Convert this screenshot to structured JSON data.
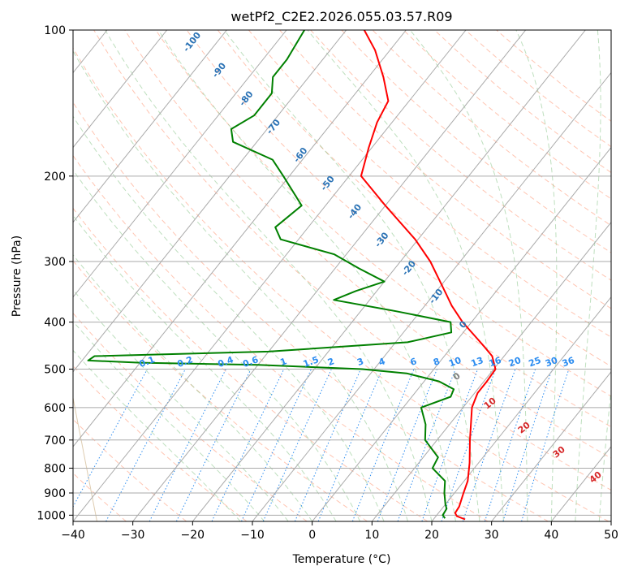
{
  "chart_data": {
    "type": "line",
    "chart_kind": "skew-T log-P diagram",
    "title": "wetPf2_C2E2.2026.055.03.57.R09",
    "xlabel": "Temperature (°C)",
    "ylabel": "Pressure (hPa)",
    "xlim": [
      -40,
      50
    ],
    "ylim": [
      1030,
      100
    ],
    "x_ticks": [
      "−40",
      "−30",
      "−20",
      "−10",
      "0",
      "10",
      "20",
      "30",
      "40",
      "50"
    ],
    "y_ticks": [
      {
        "p": 100,
        "label": "100"
      },
      {
        "p": 200,
        "label": "200"
      },
      {
        "p": 300,
        "label": "300"
      },
      {
        "p": 400,
        "label": "400"
      },
      {
        "p": 500,
        "label": "500"
      },
      {
        "p": 600,
        "label": "600"
      },
      {
        "p": 700,
        "label": "700"
      },
      {
        "p": 800,
        "label": "800"
      },
      {
        "p": 900,
        "label": "900"
      },
      {
        "p": 1000,
        "label": "1000"
      }
    ],
    "series": [
      {
        "name": "Temperature",
        "color": "#ff0000",
        "points": [
          {
            "p": 1020,
            "t": 25.3
          },
          {
            "p": 1005,
            "t": 23.5
          },
          {
            "p": 990,
            "t": 22.8
          },
          {
            "p": 960,
            "t": 22.6
          },
          {
            "p": 900,
            "t": 21.5
          },
          {
            "p": 850,
            "t": 20.6
          },
          {
            "p": 780,
            "t": 18.5
          },
          {
            "p": 700,
            "t": 15.5
          },
          {
            "p": 600,
            "t": 11.5
          },
          {
            "p": 560,
            "t": 10.5
          },
          {
            "p": 530,
            "t": 10.5
          },
          {
            "p": 500,
            "t": 10.3
          },
          {
            "p": 470,
            "t": 8.0
          },
          {
            "p": 450,
            "t": 5.5
          },
          {
            "p": 430,
            "t": 2.8
          },
          {
            "p": 400,
            "t": -1.5
          },
          {
            "p": 370,
            "t": -5.5
          },
          {
            "p": 350,
            "t": -8.0
          },
          {
            "p": 300,
            "t": -15.0
          },
          {
            "p": 270,
            "t": -20.5
          },
          {
            "p": 230,
            "t": -30.0
          },
          {
            "p": 200,
            "t": -38.0
          },
          {
            "p": 175,
            "t": -40.5
          },
          {
            "p": 155,
            "t": -42.5
          },
          {
            "p": 140,
            "t": -43.5
          },
          {
            "p": 125,
            "t": -47.5
          },
          {
            "p": 110,
            "t": -52.5
          },
          {
            "p": 100,
            "t": -57.0
          }
        ]
      },
      {
        "name": "Dewpoint",
        "color": "#008000",
        "points": [
          {
            "p": 1015,
            "t": 21.8
          },
          {
            "p": 1000,
            "t": 21.0
          },
          {
            "p": 970,
            "t": 20.8
          },
          {
            "p": 950,
            "t": 20.0
          },
          {
            "p": 900,
            "t": 18.3
          },
          {
            "p": 850,
            "t": 16.8
          },
          {
            "p": 800,
            "t": 13.0
          },
          {
            "p": 760,
            "t": 12.5
          },
          {
            "p": 700,
            "t": 8.0
          },
          {
            "p": 650,
            "t": 6.0
          },
          {
            "p": 600,
            "t": 3.0
          },
          {
            "p": 570,
            "t": 6.5
          },
          {
            "p": 550,
            "t": 6.0
          },
          {
            "p": 530,
            "t": 2.5
          },
          {
            "p": 510,
            "t": -4.0
          },
          {
            "p": 500,
            "t": -12.0
          },
          {
            "p": 490,
            "t": -30.0
          },
          {
            "p": 485,
            "t": -50.0
          },
          {
            "p": 480,
            "t": -59.0
          },
          {
            "p": 470,
            "t": -58.5
          },
          {
            "p": 460,
            "t": -30.0
          },
          {
            "p": 440,
            "t": -8.0
          },
          {
            "p": 420,
            "t": -2.0
          },
          {
            "p": 400,
            "t": -3.5
          },
          {
            "p": 380,
            "t": -14.0
          },
          {
            "p": 360,
            "t": -26.0
          },
          {
            "p": 345,
            "t": -23.5
          },
          {
            "p": 330,
            "t": -20.0
          },
          {
            "p": 310,
            "t": -26.0
          },
          {
            "p": 290,
            "t": -32.0
          },
          {
            "p": 270,
            "t": -43.0
          },
          {
            "p": 255,
            "t": -45.5
          },
          {
            "p": 230,
            "t": -44.0
          },
          {
            "p": 200,
            "t": -51.0
          },
          {
            "p": 185,
            "t": -55.0
          },
          {
            "p": 170,
            "t": -64.0
          },
          {
            "p": 160,
            "t": -66.0
          },
          {
            "p": 150,
            "t": -64.0
          },
          {
            "p": 135,
            "t": -64.0
          },
          {
            "p": 125,
            "t": -66.0
          },
          {
            "p": 115,
            "t": -66.0
          },
          {
            "p": 100,
            "t": -67.0
          }
        ]
      }
    ],
    "isotherm_labels": [
      "-100",
      "-90",
      "-80",
      "-70",
      "-60",
      "-50",
      "-40",
      "-30",
      "-20",
      "-10",
      "0"
    ],
    "mixing_ratio_labels": [
      "0.1",
      "0.2",
      "0.4",
      "0.6",
      "1",
      "1.5",
      "2",
      "3",
      "4",
      "6",
      "8",
      "10",
      "13",
      "16",
      "20",
      "25",
      "30",
      "36"
    ],
    "moist_adiabat_labels": [
      "10",
      "20",
      "30",
      "40"
    ]
  }
}
